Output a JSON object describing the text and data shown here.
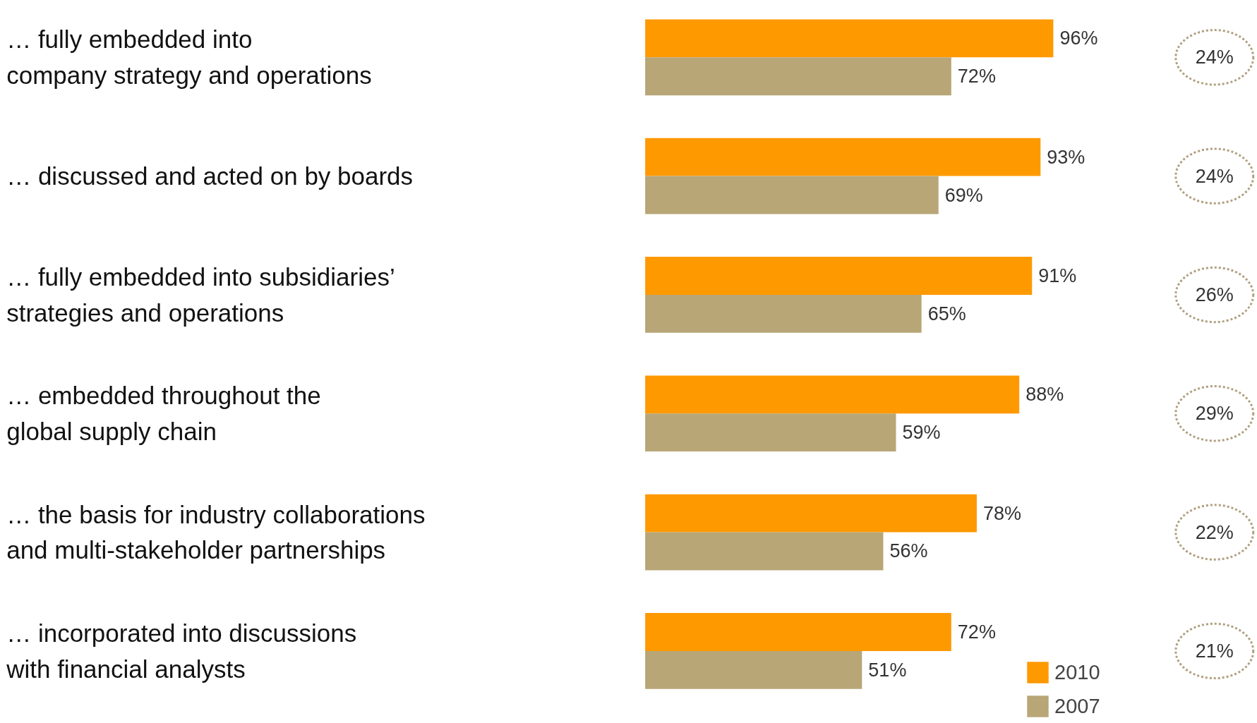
{
  "chart_data": {
    "type": "bar",
    "orientation": "horizontal",
    "categories": [
      "… fully embedded into\ncompany strategy and operations",
      "… discussed and acted on by boards",
      "… fully embedded into subsidiaries’\nstrategies and operations",
      "… embedded throughout the\nglobal supply chain",
      "… the basis for industry collaborations\nand multi-stakeholder partnerships",
      "… incorporated into discussions\nwith financial analysts"
    ],
    "series": [
      {
        "name": "2010",
        "color": "#ff9900",
        "values": [
          96,
          93,
          91,
          88,
          78,
          72
        ],
        "value_labels": [
          "96%",
          "93%",
          "91%",
          "88%",
          "78%",
          "72%"
        ]
      },
      {
        "name": "2007",
        "color": "#b8a677",
        "values": [
          72,
          69,
          65,
          59,
          56,
          51
        ],
        "value_labels": [
          "72%",
          "69%",
          "65%",
          "59%",
          "56%",
          "51%"
        ]
      }
    ],
    "legend": "bottom right",
    "annotations": [
      "24%",
      "24%",
      "26%",
      "29%",
      "22%",
      "21%"
    ]
  }
}
